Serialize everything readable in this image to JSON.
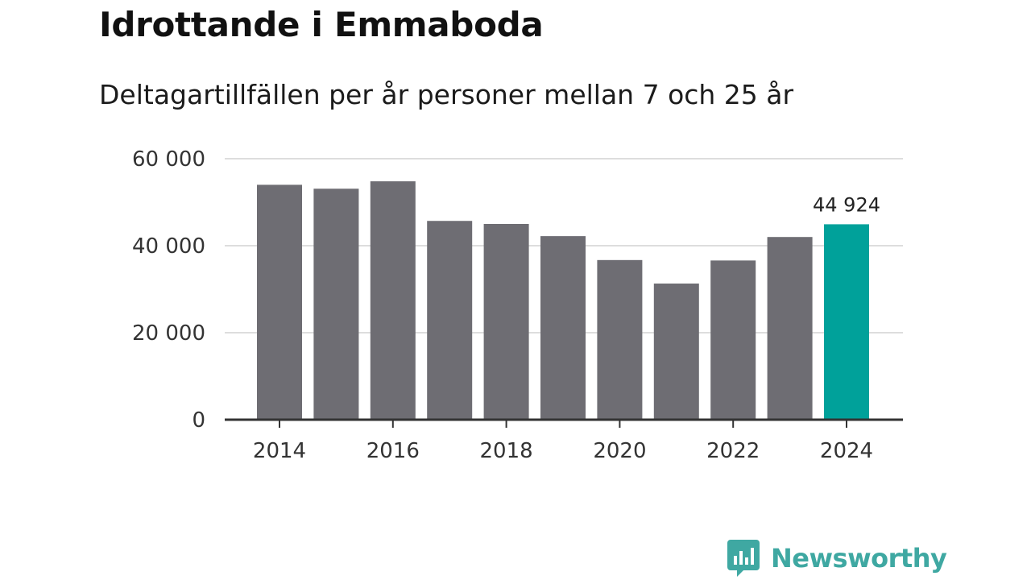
{
  "header": {
    "title": "Idrottande i Emmaboda",
    "subtitle": "Deltagartillfällen per år personer mellan 7 och 25 år"
  },
  "colors": {
    "bar": "#6e6d73",
    "highlight": "#00a19a",
    "grid": "#dddddd",
    "axis": "#333333",
    "brand": "#3fa8a2"
  },
  "chart_data": {
    "type": "bar",
    "title": "Idrottande i Emmaboda",
    "subtitle": "Deltagartillfällen per år personer mellan 7 och 25 år",
    "xlabel": "",
    "ylabel": "",
    "categories": [
      "2014",
      "2015",
      "2016",
      "2017",
      "2018",
      "2019",
      "2020",
      "2021",
      "2022",
      "2023",
      "2024"
    ],
    "values": [
      54000,
      53100,
      54800,
      45700,
      45000,
      42200,
      36700,
      31300,
      36600,
      42000,
      44924
    ],
    "highlight_index": 10,
    "highlight_label": "44 924",
    "ylim": [
      0,
      60000
    ],
    "yticks": [
      0,
      20000,
      40000,
      60000
    ],
    "ytick_labels": [
      "0",
      "20 000",
      "40 000",
      "60 000"
    ],
    "xtick_labels": [
      "2014",
      "2016",
      "2018",
      "2020",
      "2022",
      "2024"
    ],
    "grid": true
  },
  "branding": {
    "name": "Newsworthy",
    "icon": "newsworthy-logo-icon"
  }
}
